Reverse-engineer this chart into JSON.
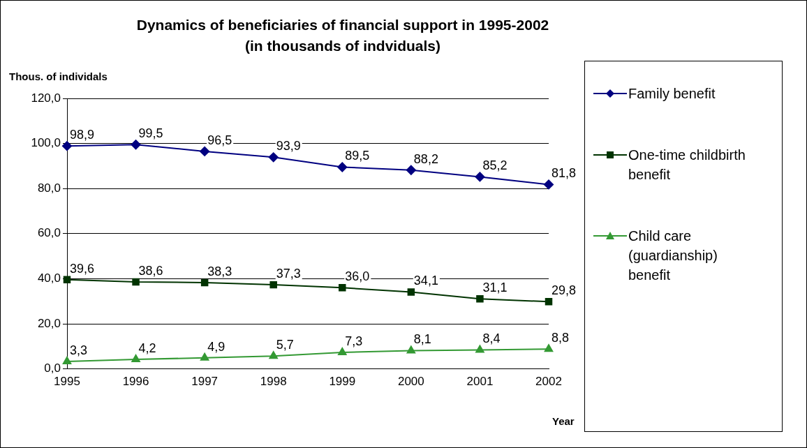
{
  "chart_data": {
    "type": "line",
    "title": "Dynamics of beneficiaries of financial support in 1995-2002 (in thousands of indviduals)",
    "ylabel": "Thous. of individals",
    "xlabel": "Year",
    "categories": [
      "1995",
      "1996",
      "1997",
      "1998",
      "1999",
      "2000",
      "2001",
      "2002"
    ],
    "series": [
      {
        "name": "Family benefit",
        "color": "#000080",
        "marker": "diamond",
        "values": [
          98.9,
          99.5,
          96.5,
          93.9,
          89.5,
          88.2,
          85.2,
          81.8
        ],
        "value_labels": [
          "98,9",
          "99,5",
          "96,5",
          "93,9",
          "89,5",
          "88,2",
          "85,2",
          "81,8"
        ]
      },
      {
        "name": "One-time childbirth benefit",
        "color": "#003300",
        "marker": "square",
        "values": [
          39.6,
          38.6,
          38.3,
          37.3,
          36.0,
          34.1,
          31.1,
          29.8
        ],
        "value_labels": [
          "39,6",
          "38,6",
          "38,3",
          "37,3",
          "36,0",
          "34,1",
          "31,1",
          "29,8"
        ]
      },
      {
        "name": "Child care (guardianship) benefit",
        "color": "#339933",
        "marker": "triangle",
        "values": [
          3.3,
          4.2,
          4.9,
          5.7,
          7.3,
          8.1,
          8.4,
          8.8
        ],
        "value_labels": [
          "3,3",
          "4,2",
          "4,9",
          "5,7",
          "7,3",
          "8,1",
          "8,4",
          "8,8"
        ]
      }
    ],
    "ylim": [
      0,
      120
    ],
    "yticks": [
      {
        "value": 0,
        "label": "0,0"
      },
      {
        "value": 20,
        "label": "20,0"
      },
      {
        "value": 40,
        "label": "40,0"
      },
      {
        "value": 60,
        "label": "60,0"
      },
      {
        "value": 80,
        "label": "80,0"
      },
      {
        "value": 100,
        "label": "100,0"
      },
      {
        "value": 120,
        "label": "120,0"
      }
    ],
    "grid": "y",
    "legend": "right",
    "line_style": "solid"
  }
}
